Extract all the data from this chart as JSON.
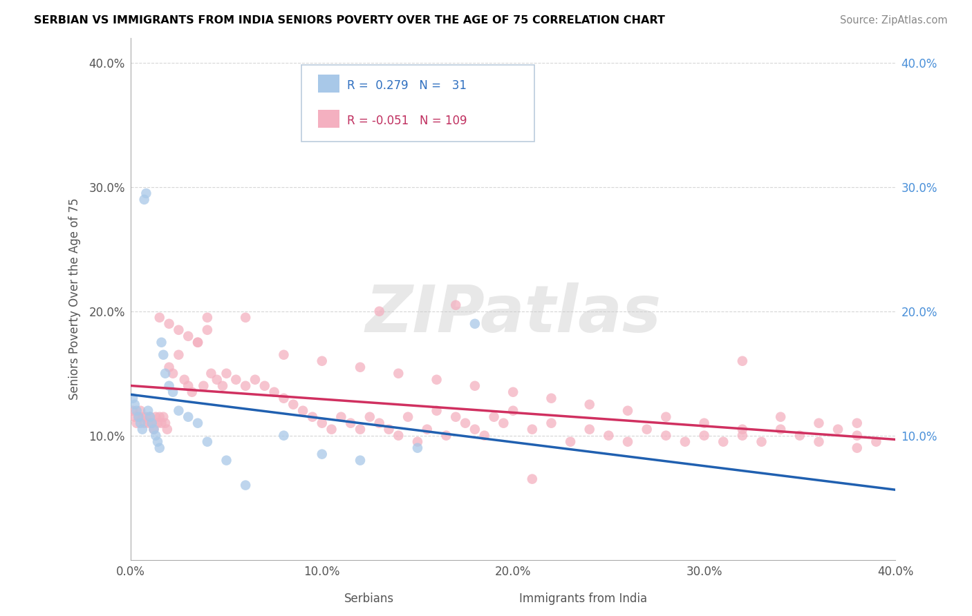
{
  "title": "SERBIAN VS IMMIGRANTS FROM INDIA SENIORS POVERTY OVER THE AGE OF 75 CORRELATION CHART",
  "source": "Source: ZipAtlas.com",
  "ylabel": "Seniors Poverty Over the Age of 75",
  "xlabel_serbian": "Serbians",
  "xlabel_india": "Immigrants from India",
  "xmin": 0.0,
  "xmax": 0.4,
  "ymin": 0.0,
  "ymax": 0.42,
  "yticks": [
    0.1,
    0.2,
    0.3,
    0.4
  ],
  "xticks": [
    0.0,
    0.1,
    0.2,
    0.3,
    0.4
  ],
  "ytick_labels": [
    "10.0%",
    "20.0%",
    "30.0%",
    "40.0%"
  ],
  "xtick_labels": [
    "0.0%",
    "10.0%",
    "20.0%",
    "30.0%",
    "40.0%"
  ],
  "serbian_R": 0.279,
  "serbian_N": 31,
  "india_R": -0.051,
  "india_N": 109,
  "serbian_color": "#a8c8e8",
  "india_color": "#f4b0c0",
  "serbian_line_color": "#2060b0",
  "india_line_color": "#d03060",
  "watermark_text": "ZIPatlas",
  "serbian_x": [
    0.001,
    0.002,
    0.003,
    0.004,
    0.005,
    0.006,
    0.007,
    0.008,
    0.009,
    0.01,
    0.011,
    0.012,
    0.013,
    0.014,
    0.015,
    0.016,
    0.017,
    0.018,
    0.02,
    0.022,
    0.025,
    0.03,
    0.035,
    0.04,
    0.05,
    0.06,
    0.08,
    0.1,
    0.12,
    0.15,
    0.18
  ],
  "serbian_y": [
    0.13,
    0.125,
    0.12,
    0.115,
    0.11,
    0.105,
    0.29,
    0.295,
    0.12,
    0.115,
    0.11,
    0.105,
    0.1,
    0.095,
    0.09,
    0.175,
    0.165,
    0.15,
    0.14,
    0.135,
    0.12,
    0.115,
    0.11,
    0.095,
    0.08,
    0.06,
    0.1,
    0.085,
    0.08,
    0.09,
    0.19
  ],
  "india_x": [
    0.001,
    0.002,
    0.003,
    0.004,
    0.005,
    0.006,
    0.007,
    0.008,
    0.009,
    0.01,
    0.011,
    0.012,
    0.013,
    0.014,
    0.015,
    0.016,
    0.017,
    0.018,
    0.019,
    0.02,
    0.022,
    0.025,
    0.028,
    0.03,
    0.032,
    0.035,
    0.038,
    0.04,
    0.042,
    0.045,
    0.048,
    0.05,
    0.055,
    0.06,
    0.065,
    0.07,
    0.075,
    0.08,
    0.085,
    0.09,
    0.095,
    0.1,
    0.105,
    0.11,
    0.115,
    0.12,
    0.125,
    0.13,
    0.135,
    0.14,
    0.145,
    0.15,
    0.155,
    0.16,
    0.165,
    0.17,
    0.175,
    0.18,
    0.185,
    0.19,
    0.195,
    0.2,
    0.21,
    0.22,
    0.23,
    0.24,
    0.25,
    0.26,
    0.27,
    0.28,
    0.29,
    0.3,
    0.31,
    0.32,
    0.33,
    0.34,
    0.35,
    0.36,
    0.37,
    0.38,
    0.39,
    0.015,
    0.02,
    0.025,
    0.03,
    0.035,
    0.04,
    0.06,
    0.08,
    0.1,
    0.12,
    0.14,
    0.16,
    0.18,
    0.2,
    0.22,
    0.24,
    0.26,
    0.28,
    0.3,
    0.32,
    0.34,
    0.36,
    0.38,
    0.13,
    0.17,
    0.21,
    0.32,
    0.38
  ],
  "india_y": [
    0.12,
    0.115,
    0.11,
    0.115,
    0.12,
    0.115,
    0.11,
    0.115,
    0.11,
    0.115,
    0.11,
    0.105,
    0.115,
    0.11,
    0.115,
    0.11,
    0.115,
    0.11,
    0.105,
    0.155,
    0.15,
    0.165,
    0.145,
    0.14,
    0.135,
    0.175,
    0.14,
    0.195,
    0.15,
    0.145,
    0.14,
    0.15,
    0.145,
    0.14,
    0.145,
    0.14,
    0.135,
    0.13,
    0.125,
    0.12,
    0.115,
    0.11,
    0.105,
    0.115,
    0.11,
    0.105,
    0.115,
    0.11,
    0.105,
    0.1,
    0.115,
    0.095,
    0.105,
    0.12,
    0.1,
    0.115,
    0.11,
    0.105,
    0.1,
    0.115,
    0.11,
    0.12,
    0.105,
    0.11,
    0.095,
    0.105,
    0.1,
    0.095,
    0.105,
    0.1,
    0.095,
    0.1,
    0.095,
    0.1,
    0.095,
    0.105,
    0.1,
    0.095,
    0.105,
    0.1,
    0.095,
    0.195,
    0.19,
    0.185,
    0.18,
    0.175,
    0.185,
    0.195,
    0.165,
    0.16,
    0.155,
    0.15,
    0.145,
    0.14,
    0.135,
    0.13,
    0.125,
    0.12,
    0.115,
    0.11,
    0.105,
    0.115,
    0.11,
    0.09,
    0.2,
    0.205,
    0.065,
    0.16,
    0.11
  ]
}
